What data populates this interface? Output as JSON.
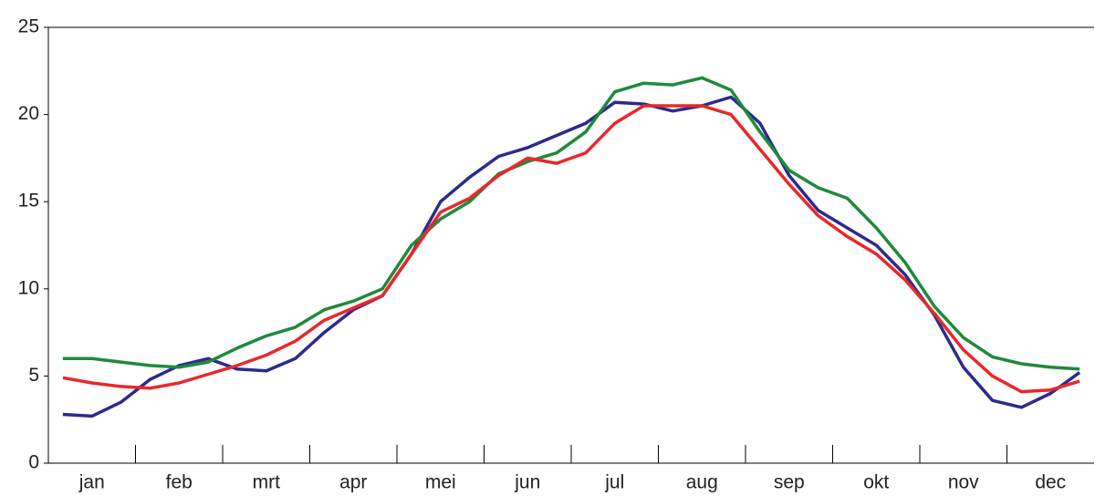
{
  "chart_data": {
    "type": "line",
    "categories": [
      null,
      "jan",
      null,
      null,
      "feb",
      null,
      null,
      "mrt",
      null,
      null,
      "apr",
      null,
      null,
      "mei",
      null,
      null,
      "jun",
      null,
      null,
      "jul",
      null,
      null,
      "aug",
      null,
      null,
      "sep",
      null,
      null,
      "okt",
      null,
      null,
      "nov",
      null,
      null,
      "dec",
      null
    ],
    "series": [
      {
        "color": "#2c2a8e",
        "values": [
          2.8,
          2.7,
          3.5,
          4.8,
          5.6,
          6.0,
          5.4,
          5.3,
          6.0,
          7.5,
          8.8,
          9.6,
          12.0,
          15.0,
          16.4,
          17.6,
          18.1,
          18.8,
          19.5,
          20.7,
          20.6,
          20.2,
          20.5,
          21.0,
          19.5,
          16.5,
          14.5,
          13.5,
          12.5,
          10.8,
          8.5,
          5.5,
          3.6,
          3.2,
          4.0,
          5.2
        ]
      },
      {
        "color": "#1f8a3b",
        "values": [
          6.0,
          6.0,
          5.8,
          5.6,
          5.5,
          5.8,
          6.6,
          7.3,
          7.8,
          8.8,
          9.3,
          10.0,
          12.5,
          14.0,
          15.0,
          16.6,
          17.3,
          17.8,
          19.0,
          21.3,
          21.8,
          21.7,
          22.1,
          21.4,
          19.0,
          16.8,
          15.8,
          15.2,
          13.5,
          11.5,
          9.0,
          7.2,
          6.1,
          5.7,
          5.5,
          5.4
        ]
      },
      {
        "color": "#e8282b",
        "values": [
          4.9,
          4.6,
          4.4,
          4.3,
          4.6,
          5.1,
          5.6,
          6.2,
          7.0,
          8.2,
          8.9,
          9.6,
          12.0,
          14.4,
          15.2,
          16.5,
          17.5,
          17.2,
          17.8,
          19.5,
          20.5,
          20.5,
          20.5,
          20.0,
          18.0,
          16.0,
          14.2,
          13.0,
          12.0,
          10.5,
          8.6,
          6.5,
          5.0,
          4.1,
          4.2,
          4.7
        ]
      }
    ],
    "ylim": [
      0,
      25
    ],
    "yticks": [
      0,
      5,
      10,
      15,
      20,
      25
    ]
  }
}
